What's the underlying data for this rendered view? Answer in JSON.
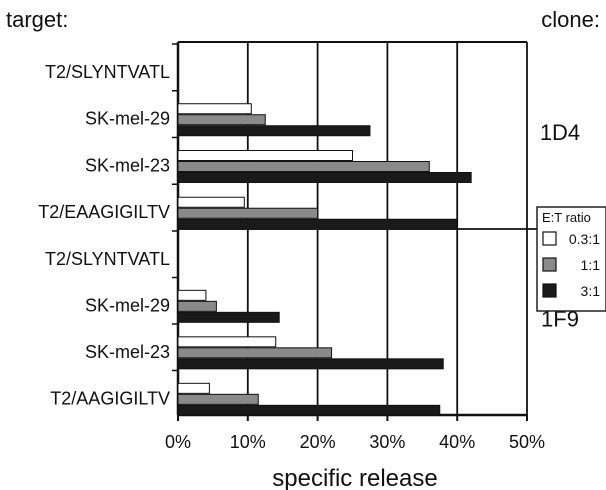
{
  "chart_data": {
    "type": "bar",
    "orientation": "horizontal",
    "header_left": "target:",
    "header_right": "clone:",
    "xlabel": "specific release",
    "xlim": [
      0,
      50
    ],
    "x_ticks": [
      "0%",
      "10%",
      "20%",
      "30%",
      "40%",
      "50%"
    ],
    "grid": "vertical",
    "legend_title": "E:T ratio",
    "legend_position": "right",
    "series": [
      {
        "name": "0.3:1",
        "fill": "#ffffff"
      },
      {
        "name": "1:1",
        "fill": "#8a8a8a"
      },
      {
        "name": "3:1",
        "fill": "#1a1a1a"
      }
    ],
    "panels": [
      {
        "clone": "1D4",
        "groups": [
          {
            "target": "T2/SLYNTVATL",
            "values": [
              0,
              0,
              0
            ]
          },
          {
            "target": "SK-mel-29",
            "values": [
              10.5,
              12.5,
              27.5
            ]
          },
          {
            "target": "SK-mel-23",
            "values": [
              25,
              36,
              42
            ]
          },
          {
            "target": "T2/EAAGIGILTV",
            "values": [
              9.5,
              20,
              40
            ]
          }
        ]
      },
      {
        "clone": "1F9",
        "groups": [
          {
            "target": "T2/SLYNTVATL",
            "values": [
              0,
              0,
              0
            ]
          },
          {
            "target": "SK-mel-29",
            "values": [
              4,
              5.5,
              14.5
            ]
          },
          {
            "target": "SK-mel-23",
            "values": [
              14,
              22,
              38
            ]
          },
          {
            "target": "T2/AAGIGILTV",
            "values": [
              4.5,
              11.5,
              37.5
            ]
          }
        ]
      }
    ]
  }
}
